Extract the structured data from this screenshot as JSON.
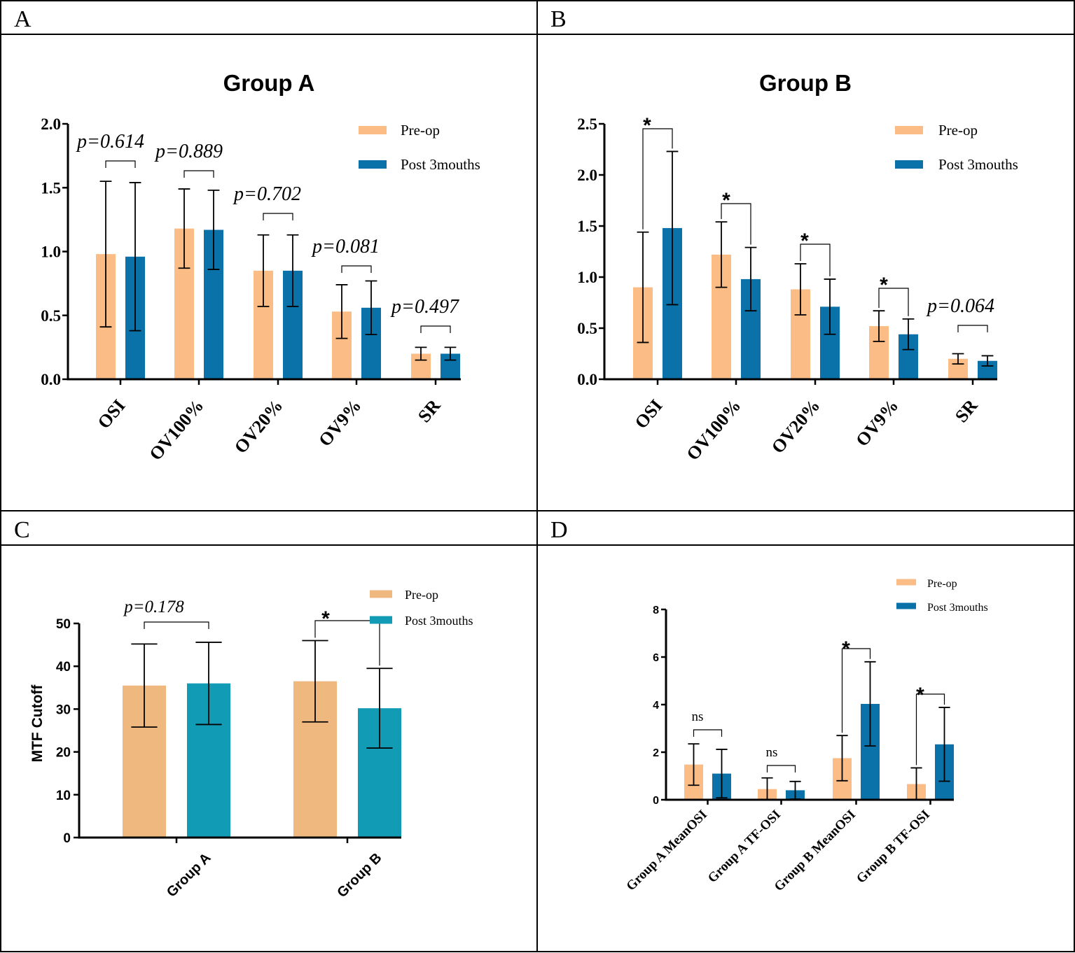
{
  "panels": {
    "A": {
      "label": "A"
    },
    "B": {
      "label": "B"
    },
    "C": {
      "label": "C"
    },
    "D": {
      "label": "D"
    }
  },
  "colors": {
    "preop": "#fbbd85",
    "post": "#0a71a9",
    "preop_c": "#efb87f",
    "post_c": "#129bb4",
    "line": "#000000"
  },
  "chart_data": [
    {
      "id": "A",
      "type": "bar",
      "title": "Group A",
      "categories": [
        "OSI",
        "OV100%",
        "OV20%",
        "OV9%",
        "SR"
      ],
      "series": [
        {
          "name": "Pre-op",
          "values": [
            0.98,
            1.18,
            0.85,
            0.53,
            0.2
          ],
          "errors": [
            0.57,
            0.31,
            0.28,
            0.21,
            0.05
          ]
        },
        {
          "name": "Post 3mouths",
          "values": [
            0.96,
            1.17,
            0.85,
            0.56,
            0.2
          ],
          "errors": [
            0.58,
            0.31,
            0.28,
            0.21,
            0.05
          ]
        }
      ],
      "ylim": [
        0,
        2.0
      ],
      "yticks": [
        "0.0",
        "0.5",
        "1.0",
        "1.5",
        "2.0"
      ],
      "ytick_values": [
        0,
        0.5,
        1.0,
        1.5,
        2.0
      ],
      "annotations": [
        "p=0.614",
        "p=0.889",
        "p=0.702",
        "p=0.081",
        "p=0.497"
      ],
      "xlabel": "",
      "ylabel": "",
      "legend": [
        "Pre-op",
        "Post 3mouths"
      ]
    },
    {
      "id": "B",
      "type": "bar",
      "title": "Group B",
      "categories": [
        "OSI",
        "OV100%",
        "OV20%",
        "OV9%",
        "SR"
      ],
      "series": [
        {
          "name": "Pre-op",
          "values": [
            0.9,
            1.22,
            0.88,
            0.52,
            0.2
          ],
          "errors": [
            0.54,
            0.32,
            0.25,
            0.15,
            0.05
          ]
        },
        {
          "name": "Post 3mouths",
          "values": [
            1.48,
            0.98,
            0.71,
            0.44,
            0.18
          ],
          "errors": [
            0.75,
            0.31,
            0.27,
            0.15,
            0.05
          ]
        }
      ],
      "ylim": [
        0,
        2.5
      ],
      "yticks": [
        "0.0",
        "0.5",
        "1.0",
        "1.5",
        "2.0",
        "2.5"
      ],
      "ytick_values": [
        0,
        0.5,
        1.0,
        1.5,
        2.0,
        2.5
      ],
      "annotations": [
        "*",
        "*",
        "*",
        "*",
        "p=0.064"
      ],
      "xlabel": "",
      "ylabel": "",
      "legend": [
        "Pre-op",
        "Post 3mouths"
      ]
    },
    {
      "id": "C",
      "type": "bar",
      "title": "",
      "categories": [
        "Group A",
        "Group B"
      ],
      "series": [
        {
          "name": "Pre-op",
          "values": [
            35.5,
            36.5
          ],
          "errors": [
            9.7,
            9.5
          ]
        },
        {
          "name": "Post 3mouths",
          "values": [
            36.0,
            30.2
          ],
          "errors": [
            9.6,
            9.3
          ]
        }
      ],
      "ylim": [
        0,
        50
      ],
      "yticks": [
        "0",
        "10",
        "20",
        "30",
        "40",
        "50"
      ],
      "ytick_values": [
        0,
        10,
        20,
        30,
        40,
        50
      ],
      "annotations": [
        "p=0.178",
        "*"
      ],
      "xlabel": "",
      "ylabel": "MTF Cutoff",
      "legend": [
        "Pre-op",
        "Post 3mouths"
      ]
    },
    {
      "id": "D",
      "type": "bar",
      "title": "",
      "categories": [
        "Group A MeanOSI",
        "Group A TF-OSI",
        "Group B MeanOSI",
        "Group B TF-OSI"
      ],
      "series": [
        {
          "name": "Pre-op",
          "values": [
            1.48,
            0.45,
            1.75,
            0.66
          ],
          "errors": [
            0.87,
            0.47,
            0.95,
            0.68
          ]
        },
        {
          "name": "Post 3mouths",
          "values": [
            1.1,
            0.4,
            4.03,
            2.33
          ],
          "errors": [
            1.02,
            0.37,
            1.77,
            1.55
          ]
        }
      ],
      "ylim": [
        0,
        8
      ],
      "yticks": [
        "0",
        "2",
        "4",
        "6",
        "8"
      ],
      "ytick_values": [
        0,
        2,
        4,
        6,
        8
      ],
      "annotations": [
        "ns",
        "ns",
        "*",
        "*"
      ],
      "xlabel": "",
      "ylabel": "",
      "legend": [
        "Pre-op",
        "Post 3mouths"
      ]
    }
  ]
}
